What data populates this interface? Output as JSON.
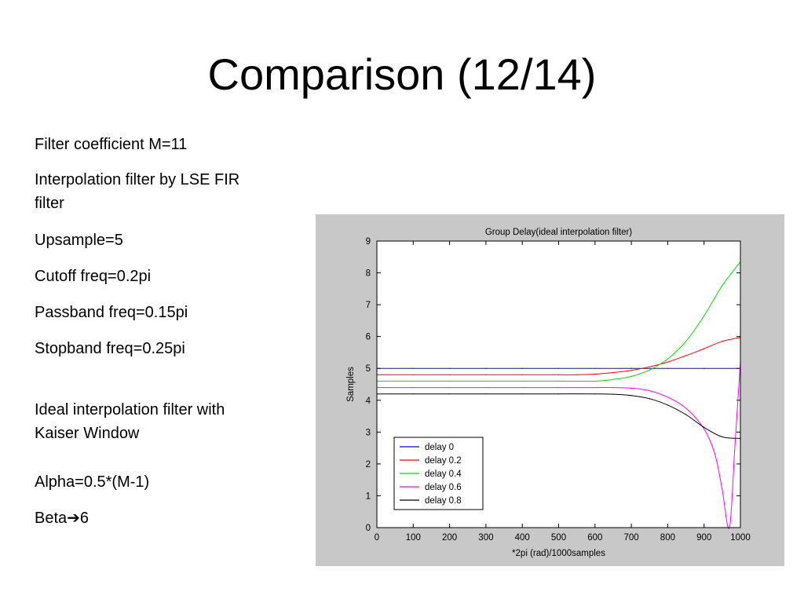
{
  "slide": {
    "title": "Comparison (12/14)",
    "bullets": [
      "Filter coefficient M=11",
      "Interpolation filter by LSE FIR filter",
      "Upsample=5",
      "Cutoff freq=0.2pi",
      "Passband freq=0.15pi",
      "Stopband freq=0.25pi",
      "Ideal interpolation filter with Kaiser Window",
      "Alpha=0.5*(M-1)"
    ],
    "beta": {
      "prefix": "Beta",
      "arrow": "➔",
      "suffix": "6"
    }
  },
  "chart_data": {
    "type": "line",
    "title": "Group Delay(ideal interpolation filter)",
    "xlabel": "*2pi (rad)/1000samples",
    "ylabel": "Samples",
    "xlim": [
      0,
      1000
    ],
    "ylim": [
      0,
      9
    ],
    "xticks": [
      0,
      100,
      200,
      300,
      400,
      500,
      600,
      700,
      800,
      900,
      1000
    ],
    "yticks": [
      0,
      1,
      2,
      3,
      4,
      5,
      6,
      7,
      8,
      9
    ],
    "grid": false,
    "legend_position": "lower-left",
    "series": [
      {
        "name": "delay 0",
        "color": "#0000ff",
        "x": [
          0,
          100,
          200,
          300,
          400,
          500,
          600,
          700,
          800,
          900,
          1000
        ],
        "y": [
          5.0,
          5.0,
          5.0,
          5.0,
          5.0,
          5.0,
          5.0,
          5.0,
          5.0,
          5.0,
          5.0
        ]
      },
      {
        "name": "delay 0.2",
        "color": "#ff0000",
        "x": [
          0,
          100,
          200,
          300,
          400,
          500,
          550,
          600,
          650,
          700,
          750,
          800,
          850,
          900,
          950,
          1000
        ],
        "y": [
          4.8,
          4.8,
          4.8,
          4.8,
          4.8,
          4.8,
          4.8,
          4.82,
          4.87,
          4.94,
          5.05,
          5.2,
          5.4,
          5.62,
          5.85,
          5.97
        ]
      },
      {
        "name": "delay 0.4",
        "color": "#00dd00",
        "x": [
          0,
          100,
          200,
          300,
          400,
          500,
          600,
          650,
          700,
          750,
          800,
          850,
          900,
          950,
          1000
        ],
        "y": [
          4.6,
          4.6,
          4.6,
          4.6,
          4.6,
          4.6,
          4.6,
          4.65,
          4.75,
          4.95,
          5.3,
          5.85,
          6.65,
          7.6,
          8.35
        ]
      },
      {
        "name": "delay 0.6",
        "color": "#ff00ff",
        "x": [
          0,
          100,
          200,
          300,
          400,
          500,
          600,
          650,
          700,
          750,
          800,
          850,
          900,
          930,
          950,
          970,
          985,
          1000
        ],
        "y": [
          4.4,
          4.4,
          4.4,
          4.4,
          4.4,
          4.4,
          4.4,
          4.4,
          4.38,
          4.3,
          4.1,
          3.75,
          3.1,
          2.3,
          1.2,
          0.0,
          2.6,
          5.2
        ]
      },
      {
        "name": "delay 0.8",
        "color": "#000000",
        "x": [
          0,
          100,
          200,
          300,
          400,
          500,
          600,
          650,
          700,
          750,
          800,
          850,
          900,
          950,
          1000
        ],
        "y": [
          4.2,
          4.2,
          4.2,
          4.2,
          4.2,
          4.2,
          4.2,
          4.19,
          4.15,
          4.05,
          3.85,
          3.55,
          3.15,
          2.85,
          2.8
        ]
      }
    ]
  }
}
